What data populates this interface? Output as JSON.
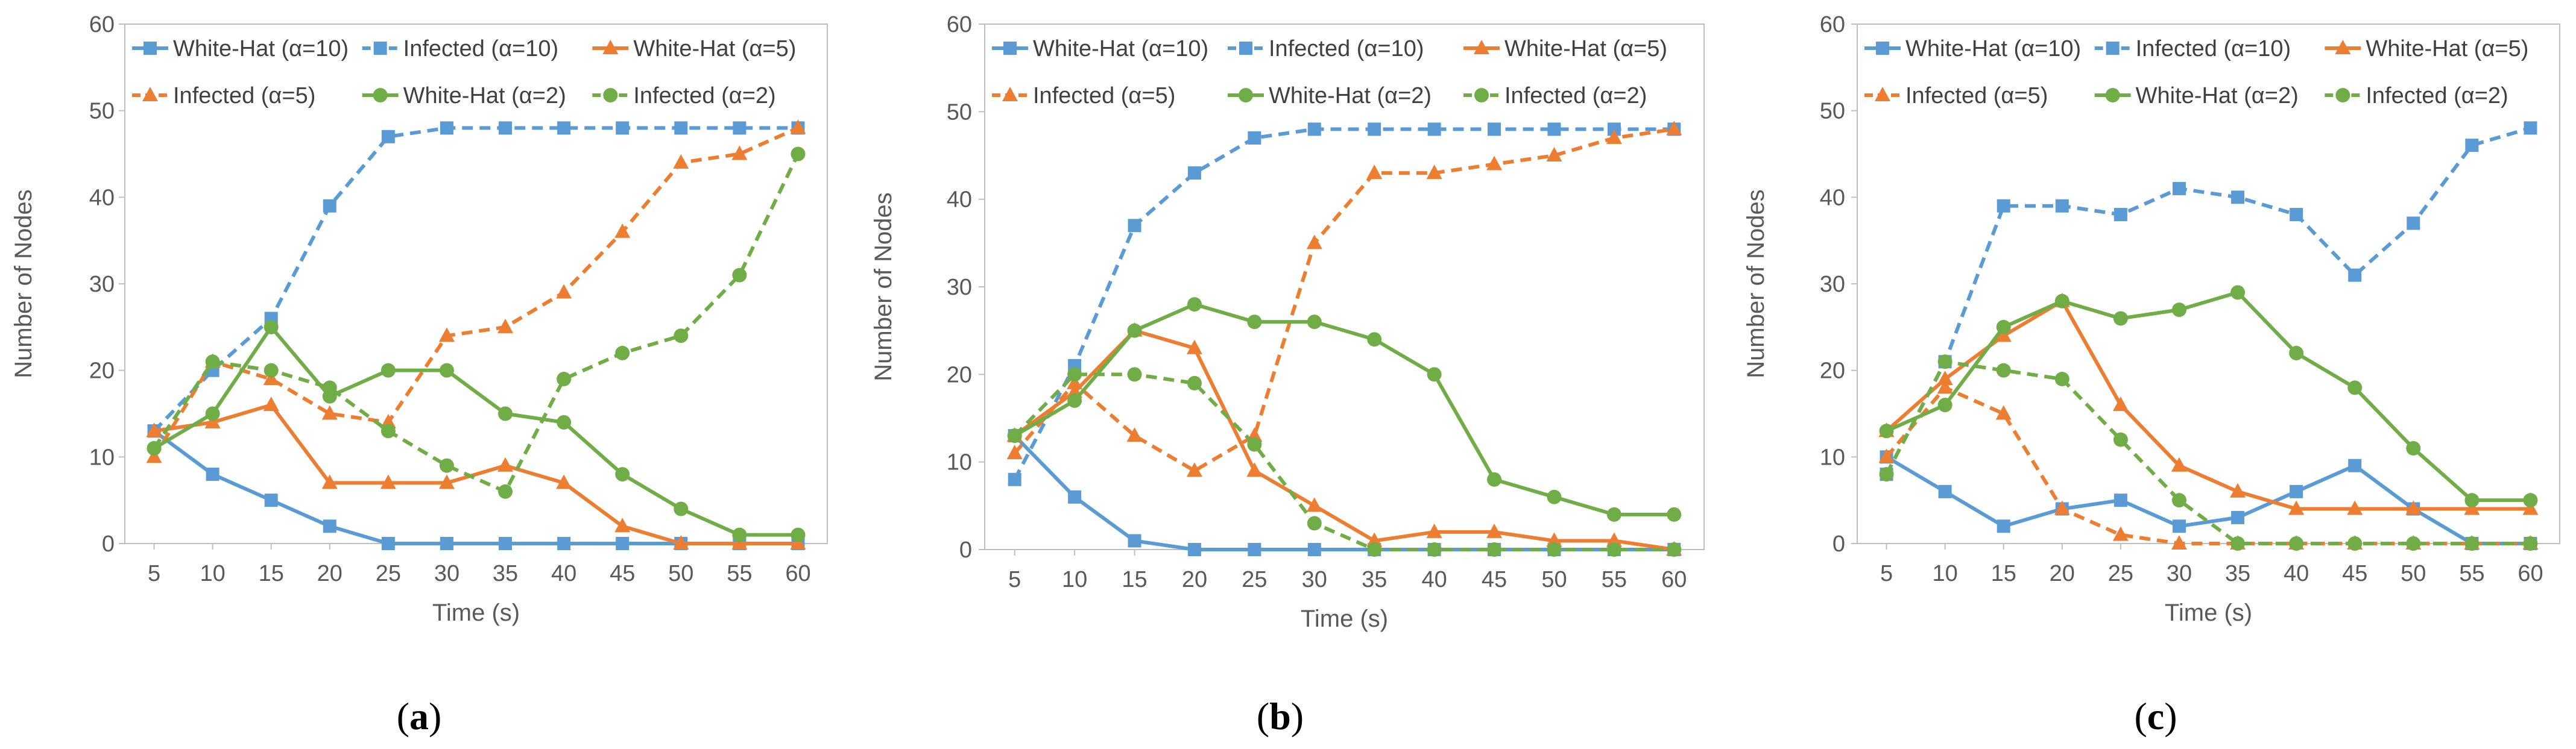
{
  "colors": {
    "blue": "#5B9BD5",
    "orange": "#ED7D31",
    "green": "#70AD47",
    "axis": "#BFBFBF",
    "text": "#595959"
  },
  "chart_data": [
    {
      "type": "line",
      "panel_label": "a",
      "xlabel": "Time (s)",
      "ylabel": "Number of Nodes",
      "ylim": [
        0,
        60
      ],
      "yticks": [
        0,
        10,
        20,
        30,
        40,
        50,
        60
      ],
      "categories": [
        "5",
        "10",
        "15",
        "20",
        "25",
        "30",
        "35",
        "40",
        "45",
        "50",
        "55",
        "60"
      ],
      "series": [
        {
          "name": "White-Hat (α=10)",
          "color": "blue",
          "dash": false,
          "marker": "square",
          "values": [
            13,
            8,
            5,
            2,
            0,
            0,
            0,
            0,
            0,
            0,
            0,
            0
          ]
        },
        {
          "name": "Infected (α=10)",
          "color": "blue",
          "dash": true,
          "marker": "square",
          "values": [
            13,
            20,
            26,
            39,
            47,
            48,
            48,
            48,
            48,
            48,
            48,
            48
          ]
        },
        {
          "name": "White-Hat (α=5)",
          "color": "orange",
          "dash": false,
          "marker": "triangle",
          "values": [
            13,
            14,
            16,
            7,
            7,
            7,
            9,
            7,
            2,
            0,
            0,
            0
          ]
        },
        {
          "name": "Infected (α=5)",
          "color": "orange",
          "dash": true,
          "marker": "triangle",
          "values": [
            10,
            21,
            19,
            15,
            14,
            24,
            25,
            29,
            36,
            44,
            45,
            48
          ]
        },
        {
          "name": "White-Hat (α=2)",
          "color": "green",
          "dash": false,
          "marker": "circle",
          "values": [
            11,
            15,
            25,
            17,
            20,
            20,
            15,
            14,
            8,
            4,
            1,
            1
          ]
        },
        {
          "name": "Infected (α=2)",
          "color": "green",
          "dash": true,
          "marker": "circle",
          "values": [
            11,
            21,
            20,
            18,
            13,
            9,
            6,
            19,
            22,
            24,
            31,
            45
          ]
        }
      ]
    },
    {
      "type": "line",
      "panel_label": "b",
      "xlabel": "Time (s)",
      "ylabel": "Number of Nodes",
      "ylim": [
        0,
        60
      ],
      "yticks": [
        0,
        10,
        20,
        30,
        40,
        50,
        60
      ],
      "categories": [
        "5",
        "10",
        "15",
        "20",
        "25",
        "30",
        "35",
        "40",
        "45",
        "50",
        "55",
        "60"
      ],
      "series": [
        {
          "name": "White-Hat (α=10)",
          "color": "blue",
          "dash": false,
          "marker": "square",
          "values": [
            13,
            6,
            1,
            0,
            0,
            0,
            0,
            0,
            0,
            0,
            0,
            0
          ]
        },
        {
          "name": "Infected (α=10)",
          "color": "blue",
          "dash": true,
          "marker": "square",
          "values": [
            8,
            21,
            37,
            43,
            47,
            48,
            48,
            48,
            48,
            48,
            48,
            48
          ]
        },
        {
          "name": "White-Hat (α=5)",
          "color": "orange",
          "dash": false,
          "marker": "triangle",
          "values": [
            13,
            18,
            25,
            23,
            9,
            5,
            1,
            2,
            2,
            1,
            1,
            0
          ]
        },
        {
          "name": "Infected (α=5)",
          "color": "orange",
          "dash": true,
          "marker": "triangle",
          "values": [
            11,
            19,
            13,
            9,
            13,
            35,
            43,
            43,
            44,
            45,
            47,
            48
          ]
        },
        {
          "name": "White-Hat (α=2)",
          "color": "green",
          "dash": false,
          "marker": "circle",
          "values": [
            13,
            17,
            25,
            28,
            26,
            26,
            24,
            20,
            8,
            6,
            4,
            4
          ]
        },
        {
          "name": "Infected (α=2)",
          "color": "green",
          "dash": true,
          "marker": "circle",
          "values": [
            13,
            20,
            20,
            19,
            12,
            3,
            0,
            0,
            0,
            0,
            0,
            0
          ]
        }
      ]
    },
    {
      "type": "line",
      "panel_label": "c",
      "xlabel": "Time (s)",
      "ylabel": "Number of Nodes",
      "ylim": [
        0,
        60
      ],
      "yticks": [
        0,
        10,
        20,
        30,
        40,
        50,
        60
      ],
      "categories": [
        "5",
        "10",
        "15",
        "20",
        "25",
        "30",
        "35",
        "40",
        "45",
        "50",
        "55",
        "60"
      ],
      "series": [
        {
          "name": "White-Hat (α=10)",
          "color": "blue",
          "dash": false,
          "marker": "square",
          "values": [
            10,
            6,
            2,
            4,
            5,
            2,
            3,
            6,
            9,
            4,
            0,
            0
          ]
        },
        {
          "name": "Infected (α=10)",
          "color": "blue",
          "dash": true,
          "marker": "square",
          "values": [
            8,
            21,
            39,
            39,
            38,
            41,
            40,
            38,
            31,
            37,
            46,
            48
          ]
        },
        {
          "name": "White-Hat (α=5)",
          "color": "orange",
          "dash": false,
          "marker": "triangle",
          "values": [
            13,
            19,
            24,
            28,
            16,
            9,
            6,
            4,
            4,
            4,
            4,
            4
          ]
        },
        {
          "name": "Infected (α=5)",
          "color": "orange",
          "dash": true,
          "marker": "triangle",
          "values": [
            10,
            18,
            15,
            4,
            1,
            0,
            0,
            0,
            0,
            0,
            0,
            0
          ]
        },
        {
          "name": "White-Hat (α=2)",
          "color": "green",
          "dash": false,
          "marker": "circle",
          "values": [
            13,
            16,
            25,
            28,
            26,
            27,
            29,
            22,
            18,
            11,
            5,
            5
          ]
        },
        {
          "name": "Infected (α=2)",
          "color": "green",
          "dash": true,
          "marker": "circle",
          "values": [
            8,
            21,
            20,
            19,
            12,
            5,
            0,
            0,
            0,
            0,
            0,
            0
          ]
        }
      ]
    }
  ]
}
